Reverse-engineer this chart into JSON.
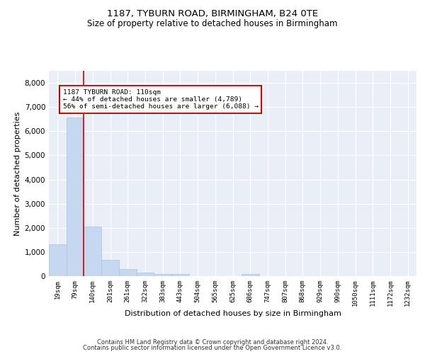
{
  "title1": "1187, TYBURN ROAD, BIRMINGHAM, B24 0TE",
  "title2": "Size of property relative to detached houses in Birmingham",
  "xlabel": "Distribution of detached houses by size in Birmingham",
  "ylabel": "Number of detached properties",
  "categories": [
    "19sqm",
    "79sqm",
    "140sqm",
    "201sqm",
    "261sqm",
    "322sqm",
    "383sqm",
    "443sqm",
    "504sqm",
    "565sqm",
    "625sqm",
    "686sqm",
    "747sqm",
    "807sqm",
    "868sqm",
    "929sqm",
    "990sqm",
    "1050sqm",
    "1111sqm",
    "1172sqm",
    "1232sqm"
  ],
  "values": [
    1320,
    6560,
    2060,
    670,
    290,
    135,
    80,
    80,
    0,
    0,
    0,
    80,
    0,
    0,
    0,
    0,
    0,
    0,
    0,
    0,
    0
  ],
  "bar_color": "#c5d8f0",
  "bar_edgecolor": "#aac4e0",
  "vline_color": "#cc0000",
  "annotation_text": "1187 TYBURN ROAD: 110sqm\n← 44% of detached houses are smaller (4,789)\n56% of semi-detached houses are larger (6,088) →",
  "annotation_box_color": "#ffffff",
  "annotation_box_edgecolor": "#cc0000",
  "ylim": [
    0,
    8500
  ],
  "yticks": [
    0,
    1000,
    2000,
    3000,
    4000,
    5000,
    6000,
    7000,
    8000
  ],
  "bg_color": "#eaeff7",
  "footer1": "Contains HM Land Registry data © Crown copyright and database right 2024.",
  "footer2": "Contains public sector information licensed under the Open Government Licence v3.0.",
  "title1_fontsize": 9.5,
  "title2_fontsize": 8.5,
  "xlabel_fontsize": 8,
  "ylabel_fontsize": 8
}
